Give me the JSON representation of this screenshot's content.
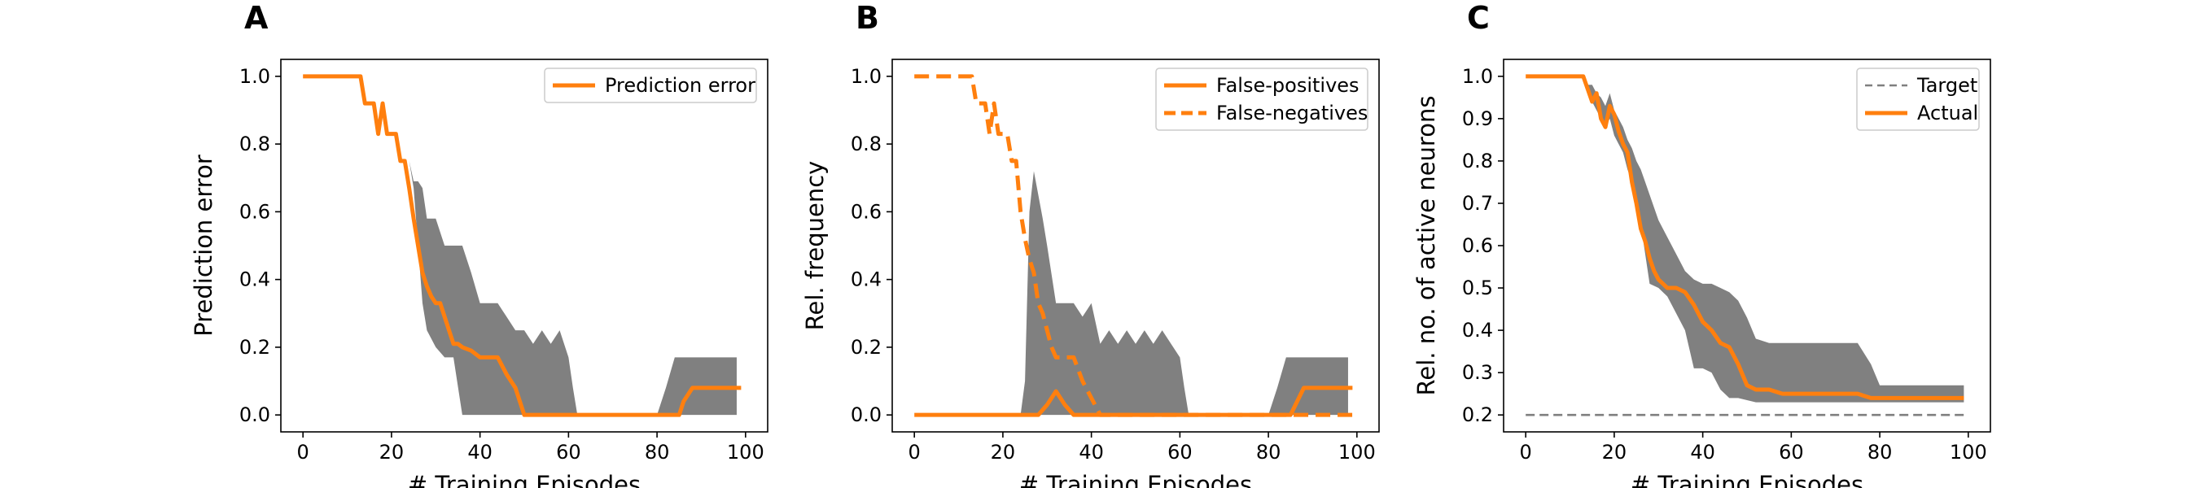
{
  "colors": {
    "series": "#ff7f0e",
    "band": "#808080",
    "target": "#7f7f7f",
    "axis": "#000000",
    "legend_border": "#cccccc"
  },
  "chart_data": [
    {
      "type": "line",
      "panel_label": "A",
      "xlabel": "# Training Episodes",
      "ylabel": "Prediction error",
      "xlim": [
        -5,
        105
      ],
      "ylim": [
        -0.05,
        1.05
      ],
      "xticks": [
        0,
        20,
        40,
        60,
        80,
        100
      ],
      "yticks": [
        0.0,
        0.2,
        0.4,
        0.6,
        0.8,
        1.0
      ],
      "ytick_labels": [
        "0.0",
        "0.2",
        "0.4",
        "0.6",
        "0.8",
        "1.0"
      ],
      "grid": false,
      "legend_position": "top-right",
      "band": {
        "x": [
          0,
          13,
          15,
          17,
          18,
          19,
          20,
          21,
          22,
          23,
          24,
          25,
          26,
          27,
          28,
          30,
          32,
          34,
          36,
          38,
          40,
          42,
          44,
          46,
          48,
          50,
          52,
          54,
          56,
          58,
          60,
          61,
          62,
          65,
          70,
          75,
          80,
          82,
          84,
          86,
          88,
          90,
          92,
          94,
          96,
          98
        ],
        "upper": [
          1.0,
          1.0,
          0.92,
          0.92,
          0.83,
          0.92,
          0.83,
          0.83,
          0.83,
          0.75,
          0.75,
          0.69,
          0.69,
          0.67,
          0.58,
          0.58,
          0.5,
          0.5,
          0.5,
          0.42,
          0.33,
          0.33,
          0.33,
          0.29,
          0.25,
          0.25,
          0.21,
          0.25,
          0.21,
          0.25,
          0.17,
          0.08,
          0.0,
          0.0,
          0.0,
          0.0,
          0.0,
          0.08,
          0.17,
          0.17,
          0.17,
          0.17,
          0.17,
          0.17,
          0.17,
          0.17
        ],
        "lower": [
          1.0,
          1.0,
          0.92,
          0.92,
          0.83,
          0.92,
          0.83,
          0.83,
          0.83,
          0.75,
          0.75,
          0.67,
          0.5,
          0.33,
          0.25,
          0.2,
          0.17,
          0.17,
          0.0,
          0.0,
          0.0,
          0.0,
          0.0,
          0.0,
          0.0,
          0.0,
          0.0,
          0.0,
          0.0,
          0.0,
          0.0,
          0.0,
          0.0,
          0.0,
          0.0,
          0.0,
          0.0,
          0.0,
          0.0,
          0.0,
          0.0,
          0.0,
          0.0,
          0.0,
          0.0,
          0.0
        ]
      },
      "series": [
        {
          "name": "Prediction error",
          "style": "solid",
          "x": [
            0,
            13,
            14,
            16,
            17,
            18,
            19,
            20,
            21,
            22,
            23,
            24,
            25,
            26,
            27,
            28,
            29,
            30,
            31,
            32,
            33,
            34,
            35,
            36,
            38,
            40,
            42,
            44,
            46,
            48,
            50,
            60,
            70,
            80,
            85,
            86,
            88,
            90,
            95,
            99
          ],
          "y": [
            1.0,
            1.0,
            0.92,
            0.92,
            0.83,
            0.92,
            0.83,
            0.83,
            0.83,
            0.75,
            0.75,
            0.67,
            0.58,
            0.5,
            0.42,
            0.38,
            0.35,
            0.33,
            0.33,
            0.29,
            0.25,
            0.21,
            0.21,
            0.2,
            0.19,
            0.17,
            0.17,
            0.17,
            0.12,
            0.08,
            0.0,
            0.0,
            0.0,
            0.0,
            0.0,
            0.04,
            0.08,
            0.08,
            0.08,
            0.08
          ]
        }
      ]
    },
    {
      "type": "line",
      "panel_label": "B",
      "xlabel": "# Training Episodes",
      "ylabel": "Rel. frequency",
      "xlim": [
        -5,
        105
      ],
      "ylim": [
        -0.05,
        1.05
      ],
      "xticks": [
        0,
        20,
        40,
        60,
        80,
        100
      ],
      "yticks": [
        0.0,
        0.2,
        0.4,
        0.6,
        0.8,
        1.0
      ],
      "ytick_labels": [
        "0.0",
        "0.2",
        "0.4",
        "0.6",
        "0.8",
        "1.0"
      ],
      "grid": false,
      "legend_position": "top-right",
      "band": {
        "x": [
          0,
          24,
          25,
          26,
          27,
          28,
          29,
          30,
          32,
          34,
          36,
          38,
          40,
          42,
          44,
          46,
          48,
          50,
          52,
          54,
          56,
          58,
          60,
          61,
          62,
          65,
          70,
          75,
          80,
          82,
          84,
          86,
          88,
          90,
          92,
          94,
          96,
          98
        ],
        "upper": [
          0.0,
          0.0,
          0.1,
          0.6,
          0.72,
          0.65,
          0.58,
          0.5,
          0.33,
          0.33,
          0.33,
          0.29,
          0.33,
          0.21,
          0.25,
          0.21,
          0.25,
          0.21,
          0.25,
          0.21,
          0.25,
          0.21,
          0.17,
          0.08,
          0.0,
          0.0,
          0.0,
          0.0,
          0.0,
          0.08,
          0.17,
          0.17,
          0.17,
          0.17,
          0.17,
          0.17,
          0.17,
          0.17
        ],
        "lower": [
          0.0,
          0.0,
          0.0,
          0.0,
          0.0,
          0.0,
          0.0,
          0.0,
          0.0,
          0.0,
          0.0,
          0.0,
          0.0,
          0.0,
          0.0,
          0.0,
          0.0,
          0.0,
          0.0,
          0.0,
          0.0,
          0.0,
          0.0,
          0.0,
          0.0,
          0.0,
          0.0,
          0.0,
          0.0,
          0.0,
          0.0,
          0.0,
          0.0,
          0.0,
          0.0,
          0.0,
          0.0,
          0.0
        ]
      },
      "series": [
        {
          "name": "False-positives",
          "style": "solid",
          "x": [
            0,
            28,
            30,
            32,
            34,
            36,
            85,
            88,
            99
          ],
          "y": [
            0.0,
            0.0,
            0.03,
            0.07,
            0.03,
            0.0,
            0.0,
            0.08,
            0.08
          ],
          "visible_x_max": 99
        },
        {
          "name": "False-negatives",
          "style": "dashed",
          "x": [
            0,
            13,
            14,
            16,
            17,
            18,
            19,
            20,
            21,
            22,
            23,
            24,
            25,
            26,
            27,
            28,
            29,
            30,
            31,
            32,
            34,
            36,
            38,
            40,
            42,
            99
          ],
          "y": [
            1.0,
            1.0,
            0.92,
            0.92,
            0.83,
            0.92,
            0.83,
            0.83,
            0.83,
            0.75,
            0.75,
            0.6,
            0.52,
            0.46,
            0.42,
            0.33,
            0.3,
            0.25,
            0.2,
            0.17,
            0.17,
            0.17,
            0.1,
            0.05,
            0.0,
            0.0
          ]
        }
      ]
    },
    {
      "type": "line",
      "panel_label": "C",
      "xlabel": "# Training Episodes",
      "ylabel": "Rel. no. of active neurons",
      "xlim": [
        -5,
        105
      ],
      "ylim": [
        0.16,
        1.04
      ],
      "xticks": [
        0,
        20,
        40,
        60,
        80,
        100
      ],
      "yticks": [
        0.2,
        0.3,
        0.4,
        0.5,
        0.6,
        0.7,
        0.8,
        0.9,
        1.0
      ],
      "ytick_labels": [
        "0.2",
        "0.3",
        "0.4",
        "0.5",
        "0.6",
        "0.7",
        "0.8",
        "0.9",
        "1.0"
      ],
      "grid": false,
      "legend_position": "top-right",
      "band": {
        "x": [
          0,
          13,
          14,
          15,
          16,
          17,
          18,
          19,
          20,
          21,
          22,
          23,
          24,
          25,
          26,
          27,
          28,
          30,
          32,
          34,
          36,
          38,
          40,
          42,
          44,
          46,
          48,
          50,
          52,
          55,
          60,
          65,
          70,
          75,
          78,
          80,
          90,
          99
        ],
        "upper": [
          1.0,
          1.0,
          0.98,
          0.98,
          0.96,
          0.95,
          0.93,
          0.96,
          0.92,
          0.9,
          0.88,
          0.85,
          0.83,
          0.8,
          0.78,
          0.75,
          0.72,
          0.66,
          0.62,
          0.58,
          0.54,
          0.52,
          0.51,
          0.51,
          0.5,
          0.49,
          0.47,
          0.43,
          0.38,
          0.37,
          0.37,
          0.37,
          0.37,
          0.37,
          0.32,
          0.27,
          0.27,
          0.27
        ],
        "lower": [
          1.0,
          1.0,
          0.96,
          0.94,
          0.92,
          0.9,
          0.88,
          0.9,
          0.86,
          0.84,
          0.82,
          0.78,
          0.75,
          0.7,
          0.65,
          0.58,
          0.51,
          0.5,
          0.48,
          0.44,
          0.4,
          0.31,
          0.31,
          0.3,
          0.26,
          0.24,
          0.24,
          0.235,
          0.23,
          0.23,
          0.23,
          0.23,
          0.23,
          0.23,
          0.23,
          0.23,
          0.23,
          0.23
        ]
      },
      "series": [
        {
          "name": "Target",
          "style": "thin-dashed",
          "x": [
            0,
            99
          ],
          "y": [
            0.2,
            0.2
          ]
        },
        {
          "name": "Actual",
          "style": "solid",
          "x": [
            0,
            13,
            14,
            15,
            16,
            17,
            18,
            19,
            20,
            21,
            22,
            23,
            24,
            25,
            26,
            27,
            28,
            29,
            30,
            31,
            32,
            34,
            36,
            38,
            40,
            42,
            44,
            46,
            48,
            50,
            52,
            55,
            58,
            60,
            70,
            75,
            78,
            80,
            90,
            99
          ],
          "y": [
            1.0,
            1.0,
            0.97,
            0.94,
            0.96,
            0.9,
            0.88,
            0.93,
            0.91,
            0.87,
            0.84,
            0.82,
            0.75,
            0.7,
            0.64,
            0.61,
            0.57,
            0.54,
            0.52,
            0.51,
            0.5,
            0.5,
            0.49,
            0.46,
            0.42,
            0.4,
            0.37,
            0.36,
            0.32,
            0.27,
            0.26,
            0.26,
            0.25,
            0.25,
            0.25,
            0.25,
            0.24,
            0.24,
            0.24,
            0.24
          ]
        }
      ]
    }
  ]
}
